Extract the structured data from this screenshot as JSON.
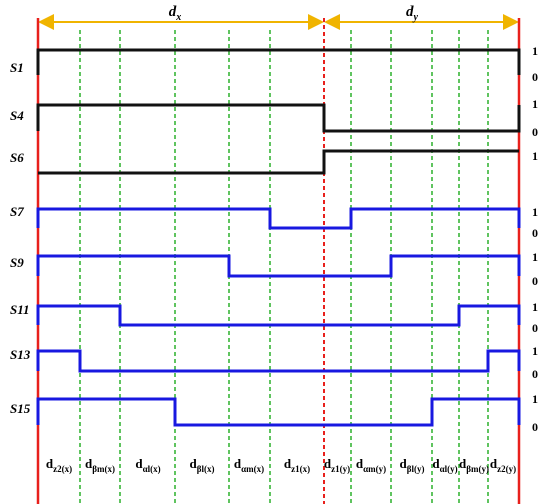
{
  "header": {
    "dx": {
      "base": "d",
      "sub": "x"
    },
    "dy": {
      "base": "d",
      "sub": "y"
    }
  },
  "signals": [
    {
      "label": "S1",
      "levels": [
        "1",
        "0"
      ]
    },
    {
      "label": "S4",
      "levels": [
        "1",
        "0"
      ]
    },
    {
      "label": "S6",
      "levels": [
        "1"
      ]
    },
    {
      "label": "S7",
      "levels": [
        "1",
        "0"
      ]
    },
    {
      "label": "S9",
      "levels": [
        "1",
        "0"
      ]
    },
    {
      "label": "S11",
      "levels": [
        "1",
        "0"
      ]
    },
    {
      "label": "S13",
      "levels": [
        "1",
        "0"
      ]
    },
    {
      "label": "S15",
      "levels": [
        "1",
        "0"
      ]
    }
  ],
  "intervals": [
    {
      "base": "d",
      "sub": "z2(x)"
    },
    {
      "base": "d",
      "sub": "βm(x)"
    },
    {
      "base": "d",
      "sub": "αl(x)"
    },
    {
      "base": "d",
      "sub": "βl(x)"
    },
    {
      "base": "d",
      "sub": "αm(x)"
    },
    {
      "base": "d",
      "sub": "z1(x)"
    },
    {
      "base": "d",
      "sub": "z1(y)"
    },
    {
      "base": "d",
      "sub": "αm(y)"
    },
    {
      "base": "d",
      "sub": "βl(y)"
    },
    {
      "base": "d",
      "sub": "αl(y)"
    },
    {
      "base": "d",
      "sub": "βm(y)"
    },
    {
      "base": "d",
      "sub": "z2(y)"
    }
  ]
}
